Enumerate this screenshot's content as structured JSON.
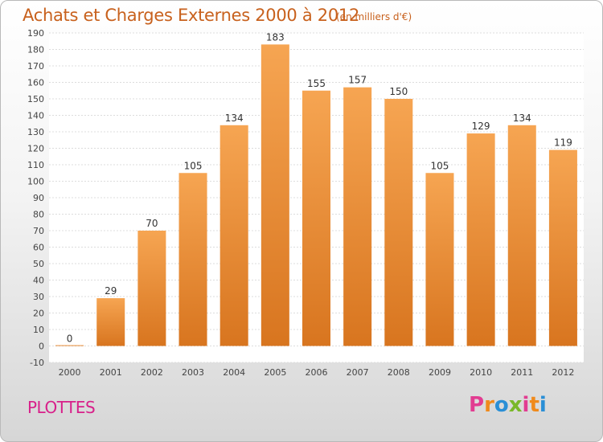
{
  "header": {
    "title": "Achats et Charges Externes 2000 à 2012",
    "subtitle": "(en milliers d'€)"
  },
  "footer": {
    "commune": "PLOTTES",
    "logo_text": "Proxiti",
    "logo_colors": [
      "#e23c91",
      "#f08a1c",
      "#2a8fd6",
      "#7ab829",
      "#e23c91",
      "#f08a1c",
      "#2a8fd6"
    ]
  },
  "colors": {
    "bar_top": "#f6a552",
    "bar_bottom": "#d8751f",
    "accent": "#c8611d"
  },
  "chart_data": {
    "type": "bar",
    "title": "Achats et Charges Externes 2000 à 2012",
    "subtitle": "(en milliers d'€)",
    "categories": [
      "2000",
      "2001",
      "2002",
      "2003",
      "2004",
      "2005",
      "2006",
      "2007",
      "2008",
      "2009",
      "2010",
      "2011",
      "2012"
    ],
    "values": [
      0,
      29,
      70,
      105,
      134,
      183,
      155,
      157,
      150,
      105,
      129,
      134,
      119
    ],
    "ylim": [
      -10,
      190
    ],
    "yticks": [
      -10,
      0,
      10,
      20,
      30,
      40,
      50,
      60,
      70,
      80,
      90,
      100,
      110,
      120,
      130,
      140,
      150,
      160,
      170,
      180,
      190
    ],
    "grid": true,
    "xlabel": "",
    "ylabel": ""
  }
}
